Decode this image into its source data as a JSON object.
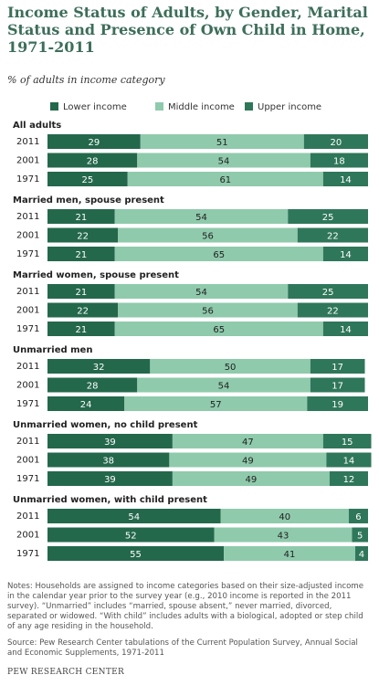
{
  "chart_data": {
    "type": "stacked-bar",
    "title": "Income Status of Adults, by Gender, Marital Status and Presence of Own Child in Home, 1971-2011",
    "subtitle": "% of adults in income category",
    "xlim": [
      0,
      100
    ],
    "series": [
      {
        "name": "Lower income",
        "color": "#24684c"
      },
      {
        "name": "Middle income",
        "color": "#8fcaac"
      },
      {
        "name": "Upper income",
        "color": "#2f775a"
      }
    ],
    "groups": [
      {
        "title": "All adults",
        "categories": [
          "2011",
          "2001",
          "1971"
        ],
        "values": [
          [
            29,
            51,
            20
          ],
          [
            28,
            54,
            18
          ],
          [
            25,
            61,
            14
          ]
        ]
      },
      {
        "title": "Married men, spouse present",
        "categories": [
          "2011",
          "2001",
          "1971"
        ],
        "values": [
          [
            21,
            54,
            25
          ],
          [
            22,
            56,
            22
          ],
          [
            21,
            65,
            14
          ]
        ]
      },
      {
        "title": "Married women, spouse present",
        "categories": [
          "2011",
          "2001",
          "1971"
        ],
        "values": [
          [
            21,
            54,
            25
          ],
          [
            22,
            56,
            22
          ],
          [
            21,
            65,
            14
          ]
        ]
      },
      {
        "title": "Unmarried men",
        "categories": [
          "2011",
          "2001",
          "1971"
        ],
        "values": [
          [
            32,
            50,
            17
          ],
          [
            28,
            54,
            17
          ],
          [
            24,
            57,
            19
          ]
        ]
      },
      {
        "title": "Unmarried women, no child present",
        "categories": [
          "2011",
          "2001",
          "1971"
        ],
        "values": [
          [
            39,
            47,
            15
          ],
          [
            38,
            49,
            14
          ],
          [
            39,
            49,
            12
          ]
        ]
      },
      {
        "title": "Unmarried women, with child present",
        "categories": [
          "2011",
          "2001",
          "1971"
        ],
        "values": [
          [
            54,
            40,
            6
          ],
          [
            52,
            43,
            5
          ],
          [
            55,
            41,
            4
          ]
        ]
      }
    ],
    "notes": "Notes: Households are assigned to income categories based on their size-adjusted income in the calendar year prior to the survey year (e.g., 2010 income is reported in the 2011 survey). “Unmarried” includes “married, spouse absent,” never married, divorced, separated or widowed. “With child” includes adults with a biological, adopted or step child of any age residing in the household.",
    "source": "Source: Pew Research Center tabulations of the Current Population Survey, Annual Social and Economic Supplements, 1971-2011",
    "credit": "PEW RESEARCH CENTER"
  }
}
